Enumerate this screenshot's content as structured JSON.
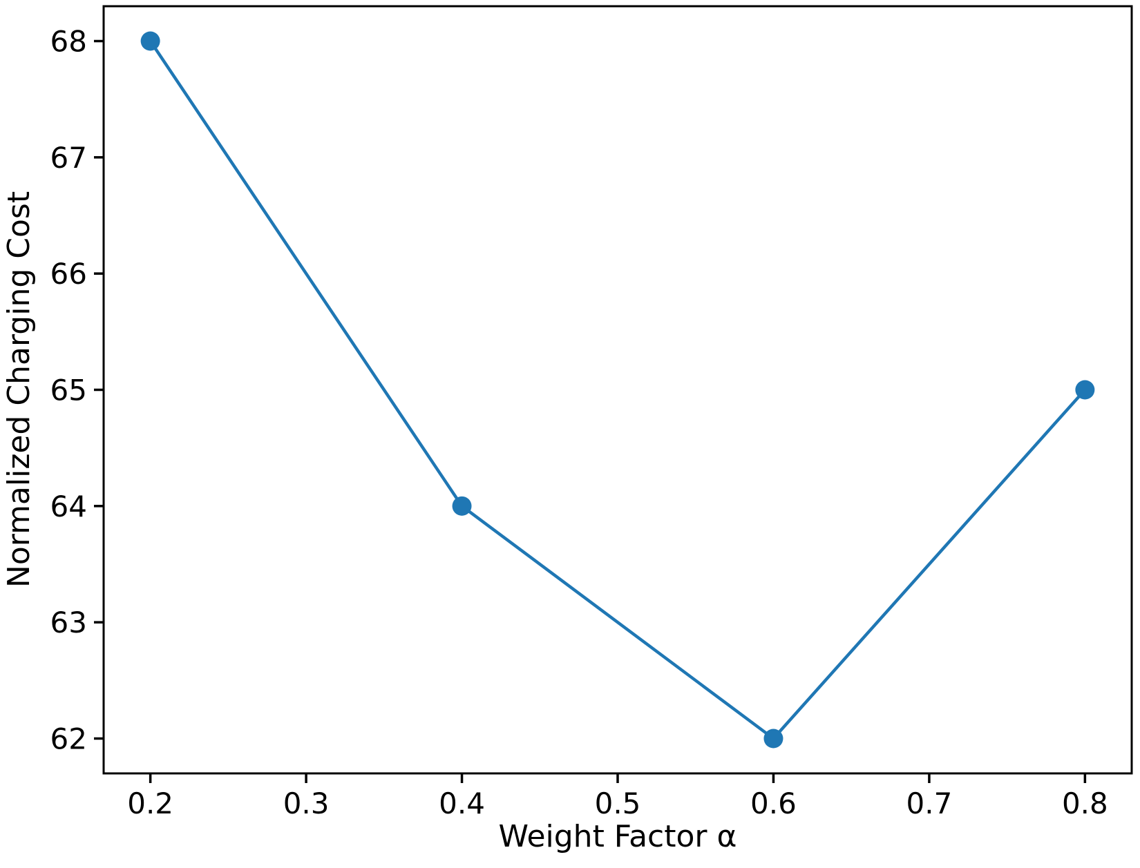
{
  "figure": {
    "background": "#ffffff"
  },
  "chart_data": {
    "type": "line",
    "title": "",
    "xlabel": "Weight Factor α",
    "ylabel": "Normalized Charging Cost",
    "x": [
      0.2,
      0.4,
      0.6,
      0.8
    ],
    "y": [
      68,
      64,
      62,
      65
    ],
    "x_ticks": [
      0.2,
      0.3,
      0.4,
      0.5,
      0.6,
      0.7,
      0.8
    ],
    "y_ticks": [
      62,
      63,
      64,
      65,
      66,
      67,
      68
    ],
    "xlim": [
      0.17,
      0.83
    ],
    "ylim": [
      61.7,
      68.3
    ],
    "grid": false,
    "legend": "none",
    "line_color": "#1f77b4",
    "marker": "circle",
    "marker_color": "#1f77b4",
    "axis_color": "#000000",
    "tick_label_color": "#000000"
  }
}
